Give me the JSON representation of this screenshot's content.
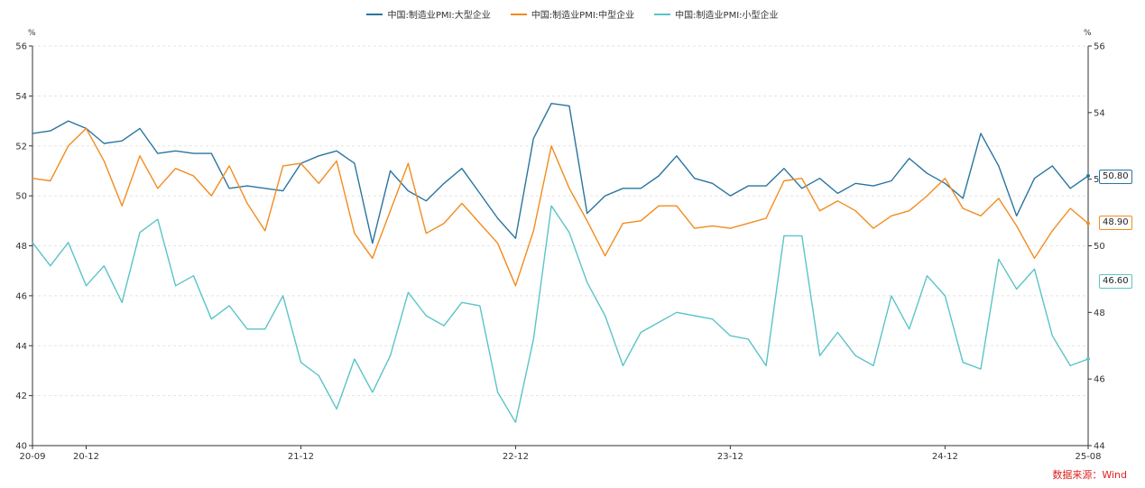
{
  "colors": {
    "large": "#2a74a0",
    "medium": "#f28c1f",
    "small": "#5bc4c8",
    "source": "#e02020"
  },
  "legend": [
    {
      "key": "large",
      "label": "中国:制造业PMI:大型企业"
    },
    {
      "key": "medium",
      "label": "中国:制造业PMI:中型企业"
    },
    {
      "key": "small",
      "label": "中国:制造业PMI:小型企业"
    }
  ],
  "source": "数据来源：Wind",
  "axis": {
    "left_unit": "%",
    "right_unit": "%"
  },
  "end_labels": {
    "large": "50.80",
    "medium": "48.90",
    "small": "46.60"
  },
  "chart_data": {
    "type": "line",
    "x_ticks": [
      "20-09",
      "20-12",
      "21-12",
      "22-12",
      "23-12",
      "24-12",
      "25-08"
    ],
    "x": [
      "20-09",
      "20-10",
      "20-11",
      "20-12",
      "21-01",
      "21-02",
      "21-03",
      "21-04",
      "21-05",
      "21-06",
      "21-07",
      "21-08",
      "21-09",
      "21-10",
      "21-11",
      "21-12",
      "22-01",
      "22-02",
      "22-03",
      "22-04",
      "22-05",
      "22-06",
      "22-07",
      "22-08",
      "22-09",
      "22-10",
      "22-11",
      "22-12",
      "23-01",
      "23-02",
      "23-03",
      "23-04",
      "23-05",
      "23-06",
      "23-07",
      "23-08",
      "23-09",
      "23-10",
      "23-11",
      "23-12",
      "24-01",
      "24-02",
      "24-03",
      "24-04",
      "24-05",
      "24-06",
      "24-07",
      "24-08",
      "24-09",
      "24-10",
      "24-11",
      "24-12",
      "25-01",
      "25-02",
      "25-03",
      "25-04",
      "25-05",
      "25-06",
      "25-07",
      "25-08"
    ],
    "y_left": {
      "min": 40,
      "max": 56,
      "ticks": [
        40,
        42,
        44,
        46,
        48,
        50,
        52,
        54,
        56
      ]
    },
    "y_right": {
      "min": 44,
      "max": 56,
      "ticks": [
        44,
        46,
        48,
        50,
        52,
        54,
        56
      ]
    },
    "series": [
      {
        "key": "large",
        "name": "中国:制造业PMI:大型企业",
        "axis": "left",
        "values": [
          52.5,
          52.6,
          53.0,
          52.7,
          52.1,
          52.2,
          52.7,
          51.7,
          51.8,
          51.7,
          51.7,
          50.3,
          50.4,
          50.3,
          50.2,
          51.3,
          51.6,
          51.8,
          51.3,
          48.1,
          51.0,
          50.2,
          49.8,
          50.5,
          51.1,
          50.1,
          49.1,
          48.3,
          52.3,
          53.7,
          53.6,
          49.3,
          50.0,
          50.3,
          50.3,
          50.8,
          51.6,
          50.7,
          50.5,
          50.0,
          50.4,
          50.4,
          51.1,
          50.3,
          50.7,
          50.1,
          50.5,
          50.4,
          50.6,
          51.5,
          50.9,
          50.5,
          49.9,
          52.5,
          51.2,
          49.2,
          50.7,
          51.2,
          50.3,
          50.8
        ]
      },
      {
        "key": "medium",
        "name": "中国:制造业PMI:中型企业",
        "axis": "left",
        "values": [
          50.7,
          50.6,
          52.0,
          52.7,
          51.4,
          49.6,
          51.6,
          50.3,
          51.1,
          50.8,
          50.0,
          51.2,
          49.7,
          48.6,
          51.2,
          51.3,
          50.5,
          51.4,
          48.5,
          47.5,
          49.4,
          51.3,
          48.5,
          48.9,
          49.7,
          48.9,
          48.1,
          46.4,
          48.6,
          52.0,
          50.3,
          49.0,
          47.6,
          48.9,
          49.0,
          49.6,
          49.6,
          48.7,
          48.8,
          48.7,
          48.9,
          49.1,
          50.6,
          50.7,
          49.4,
          49.8,
          49.4,
          48.7,
          49.2,
          49.4,
          50.0,
          50.7,
          49.5,
          49.2,
          49.9,
          48.8,
          47.5,
          48.6,
          49.5,
          48.9
        ]
      },
      {
        "key": "small",
        "name": "中国:制造业PMI:小型企业",
        "axis": "right",
        "values": [
          50.1,
          49.4,
          50.1,
          48.8,
          49.4,
          48.3,
          50.4,
          50.8,
          48.8,
          49.1,
          47.8,
          48.2,
          47.5,
          47.5,
          48.5,
          46.5,
          46.1,
          45.1,
          46.6,
          45.6,
          46.7,
          48.6,
          47.9,
          47.6,
          48.3,
          48.2,
          45.6,
          44.7,
          47.2,
          51.2,
          50.4,
          48.9,
          47.9,
          46.4,
          47.4,
          47.7,
          48.0,
          47.9,
          47.8,
          47.3,
          47.2,
          46.4,
          50.3,
          50.3,
          46.7,
          47.4,
          46.7,
          46.4,
          48.5,
          47.5,
          49.1,
          48.5,
          46.5,
          46.3,
          49.6,
          48.7,
          49.3,
          47.3,
          46.4,
          46.6
        ]
      }
    ],
    "grid": {
      "horizontal": true,
      "style": "dashed"
    },
    "legend_position": "top-center"
  }
}
